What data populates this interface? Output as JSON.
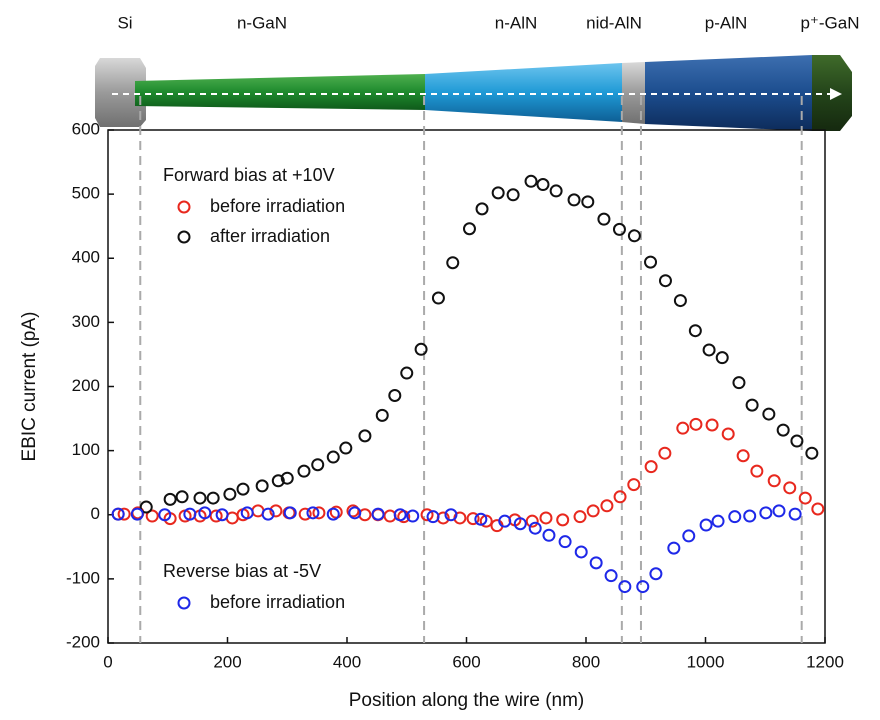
{
  "chart_data": {
    "type": "scatter",
    "xlabel": "Position along the wire (nm)",
    "ylabel": "EBIC current (pA)",
    "xlim": [
      0,
      1200
    ],
    "xticks": [
      0,
      200,
      400,
      600,
      800,
      1000,
      1200
    ],
    "ylim": [
      -200,
      600
    ],
    "yticks": [
      -200,
      -100,
      0,
      100,
      200,
      300,
      400,
      500,
      600
    ],
    "segments": [
      "Si",
      "n-GaN",
      "n-AlN",
      "nid-AlN",
      "p-AlN",
      "p⁺-GaN"
    ],
    "boundaries": [
      54,
      529,
      860,
      892,
      1161
    ],
    "legend_groups": [
      {
        "title": "Forward bias at +10V",
        "entries": [
          0,
          1
        ]
      },
      {
        "title": "Reverse bias at -5V",
        "entries": [
          2
        ]
      }
    ],
    "series": [
      {
        "name": "before irradiation",
        "color": "#e8281e",
        "x": [
          17,
          27,
          50,
          74,
          104,
          129,
          154,
          181,
          208,
          226,
          251,
          281,
          303,
          330,
          353,
          382,
          410,
          430,
          452,
          472,
          495,
          534,
          561,
          589,
          611,
          633,
          651,
          681,
          710,
          733,
          761,
          790,
          812,
          835,
          857,
          880,
          909,
          932,
          962,
          984,
          1011,
          1038,
          1063,
          1086,
          1115,
          1141,
          1167,
          1188
        ],
        "values": [
          1,
          1,
          3,
          -2,
          -6,
          -2,
          -2,
          -2,
          -5,
          0,
          6,
          6,
          3,
          1,
          3,
          4,
          6,
          0,
          0,
          -2,
          -3,
          0,
          -5,
          -5,
          -6,
          -10,
          -17,
          -8,
          -10,
          -5,
          -8,
          -3,
          6,
          14,
          28,
          47,
          75,
          96,
          135,
          141,
          140,
          126,
          92,
          68,
          53,
          42,
          26,
          9
        ]
      },
      {
        "name": "after irradiation",
        "color": "#111111",
        "x": [
          64,
          104,
          124,
          154,
          176,
          204,
          226,
          258,
          285,
          300,
          328,
          351,
          377,
          398,
          430,
          459,
          480,
          500,
          524,
          553,
          577,
          605,
          626,
          653,
          678,
          708,
          728,
          750,
          780,
          803,
          830,
          856,
          881,
          908,
          933,
          958,
          983,
          1006,
          1028,
          1056,
          1078,
          1106,
          1130,
          1153,
          1178
        ],
        "values": [
          12,
          24,
          28,
          26,
          26,
          32,
          40,
          45,
          53,
          57,
          68,
          78,
          90,
          104,
          123,
          155,
          186,
          221,
          258,
          338,
          393,
          446,
          477,
          502,
          499,
          520,
          515,
          505,
          491,
          488,
          461,
          445,
          435,
          394,
          365,
          334,
          287,
          257,
          245,
          206,
          171,
          157,
          132,
          115,
          96
        ]
      },
      {
        "name": "before irradiation",
        "color": "#1e28e8",
        "x": [
          17,
          49,
          95,
          137,
          162,
          191,
          233,
          268,
          305,
          343,
          377,
          413,
          452,
          489,
          510,
          544,
          574,
          624,
          664,
          690,
          715,
          738,
          765,
          792,
          817,
          842,
          865,
          895,
          917,
          947,
          972,
          1001,
          1021,
          1049,
          1074,
          1101,
          1123,
          1150
        ],
        "values": [
          1,
          1,
          0,
          1,
          3,
          0,
          3,
          1,
          3,
          3,
          1,
          3,
          1,
          0,
          -2,
          -3,
          0,
          -7,
          -10,
          -14,
          -21,
          -32,
          -42,
          -58,
          -75,
          -95,
          -112,
          -112,
          -92,
          -52,
          -33,
          -16,
          -10,
          -3,
          -2,
          3,
          6,
          1
        ]
      }
    ]
  }
}
